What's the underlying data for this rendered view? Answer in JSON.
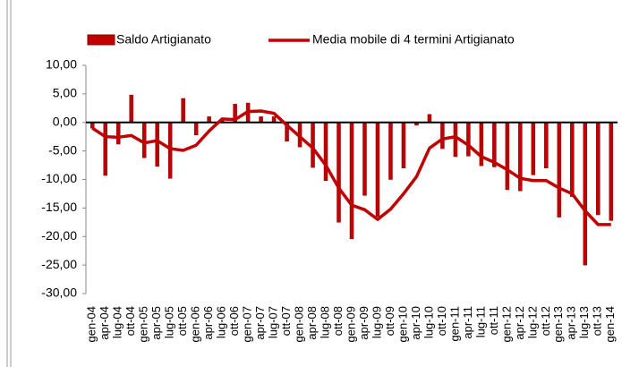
{
  "chart_data": {
    "type": "bar_line",
    "categories": [
      "gen-04",
      "apr-04",
      "lug-04",
      "ott-04",
      "gen-05",
      "apr-05",
      "lug-05",
      "ott-05",
      "gen-06",
      "apr-06",
      "lug-06",
      "ott-06",
      "gen-07",
      "apr-07",
      "lug-07",
      "ott-07",
      "gen-08",
      "apr-08",
      "lug-08",
      "ott-08",
      "gen-09",
      "apr-09",
      "lug-09",
      "ott-09",
      "gen-10",
      "apr-10",
      "lug-10",
      "ott-10",
      "gen-11",
      "apr-11",
      "lug-11",
      "ott-11",
      "gen-12",
      "apr-12",
      "lug-12",
      "ott-12",
      "gen-13",
      "apr-13",
      "lug-13",
      "ott-13",
      "gen-14"
    ],
    "series": [
      {
        "name": "Saldo Artigianato",
        "color": "#c00000",
        "kind": "bar",
        "values": [
          -1.0,
          -9.3,
          -3.8,
          4.8,
          -6.2,
          -7.7,
          -9.8,
          4.2,
          -2.2,
          1.0,
          0.5,
          3.2,
          3.4,
          1.0,
          1.0,
          -3.3,
          -4.3,
          -7.9,
          -10.2,
          -17.5,
          -20.4,
          -12.8,
          -16.5,
          -10.0,
          -8.0,
          -0.5,
          1.4,
          -4.6,
          -6.0,
          -5.9,
          -7.6,
          -7.8,
          -11.8,
          -12.0,
          -9.2,
          -8.0,
          -16.6,
          -13.0,
          -25.0,
          -16.2,
          -17.2
        ]
      },
      {
        "name": "Media mobile di 4 termini Artigianato",
        "color": "#c00000",
        "kind": "line",
        "values": [
          -1.0,
          -2.5,
          -2.6,
          -2.3,
          -3.6,
          -3.2,
          -4.6,
          -4.9,
          -4.0,
          -1.5,
          0.6,
          0.5,
          1.9,
          2.0,
          1.6,
          -0.5,
          -2.5,
          -4.5,
          -7.5,
          -11.5,
          -14.5,
          -15.3,
          -17.0,
          -15.2,
          -12.5,
          -9.5,
          -4.5,
          -2.9,
          -2.5,
          -4.0,
          -6.0,
          -7.0,
          -8.3,
          -9.8,
          -10.2,
          -10.2,
          -11.5,
          -12.5,
          -15.5,
          -17.9,
          -17.9
        ]
      }
    ],
    "ylim": [
      -30,
      10
    ],
    "yticks": [
      {
        "value": -30,
        "label": "-30,00"
      },
      {
        "value": -25,
        "label": "-25,00"
      },
      {
        "value": -20,
        "label": "-20,00"
      },
      {
        "value": -15,
        "label": "-15,00"
      },
      {
        "value": -10,
        "label": "-10,00"
      },
      {
        "value": -5,
        "label": "-5,00"
      },
      {
        "value": 0,
        "label": "0,00"
      },
      {
        "value": 5,
        "label": "5,00"
      },
      {
        "value": 10,
        "label": "10,00"
      }
    ],
    "grid": false,
    "legend": "top"
  }
}
